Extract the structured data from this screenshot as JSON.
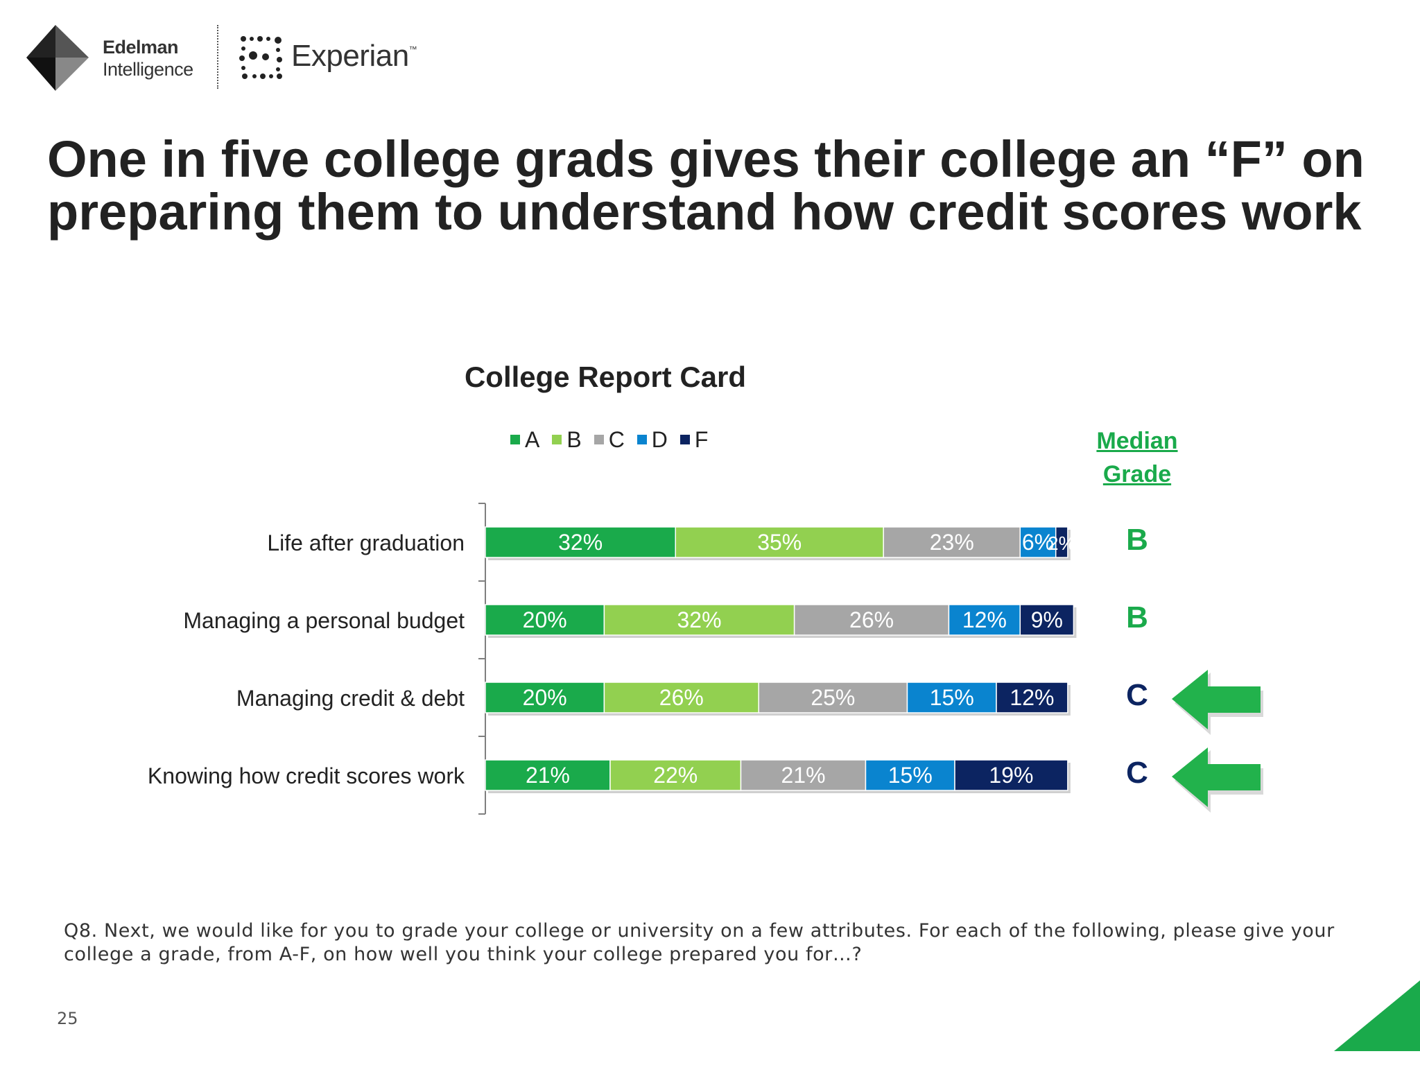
{
  "brand": {
    "edelman_line1": "Edelman",
    "edelman_line2": "Intelligence",
    "experian_name": "Experian",
    "experian_tm": "™"
  },
  "headline": "One in five college grads gives their college an “F” on preparing them to understand how credit scores work",
  "median": {
    "header_line1": "Median",
    "header_line2": "Grade",
    "grades": [
      "B",
      "B",
      "C",
      "C"
    ],
    "grade_colors": [
      "#1aaa4b",
      "#1aaa4b",
      "#0c2461",
      "#0c2461"
    ],
    "highlighted": [
      false,
      false,
      true,
      true
    ]
  },
  "question": "Q8. Next, we would like for you to grade your college or university on a few attributes. For each of the following, please give your college a grade, from A-F, on how well you think your college prepared you for…?",
  "page_number": "25",
  "colors": {
    "accent_green": "#1aaa4b",
    "arrow_green": "#22b24c",
    "dark_navy": "#0c2461"
  },
  "chart_data": {
    "type": "bar",
    "orientation": "horizontal",
    "stacked": true,
    "title": "College Report Card",
    "legend_position": "top",
    "categories": [
      "Life after graduation",
      "Managing a personal budget",
      "Managing credit & debt",
      "Knowing how credit scores work"
    ],
    "series": [
      {
        "name": "A",
        "color": "#1aaa4b",
        "values": [
          32,
          20,
          20,
          21
        ],
        "labels": [
          "32%",
          "20%",
          "20%",
          "21%"
        ]
      },
      {
        "name": "B",
        "color": "#92d050",
        "values": [
          35,
          32,
          26,
          22
        ],
        "labels": [
          "35%",
          "32%",
          "26%",
          "22%"
        ]
      },
      {
        "name": "C",
        "color": "#a6a6a6",
        "values": [
          23,
          26,
          25,
          21
        ],
        "labels": [
          "23%",
          "26%",
          "25%",
          "21%"
        ]
      },
      {
        "name": "D",
        "color": "#0a84cf",
        "values": [
          6,
          12,
          15,
          15
        ],
        "labels": [
          "6%",
          "12%",
          "15%",
          "15%"
        ]
      },
      {
        "name": "F",
        "color": "#0c2461",
        "values": [
          2,
          9,
          12,
          19
        ],
        "labels": [
          "2%",
          "9%",
          "12%",
          "19%"
        ]
      }
    ],
    "value_unit": "%",
    "x_axis_visible": false,
    "grid": false
  }
}
